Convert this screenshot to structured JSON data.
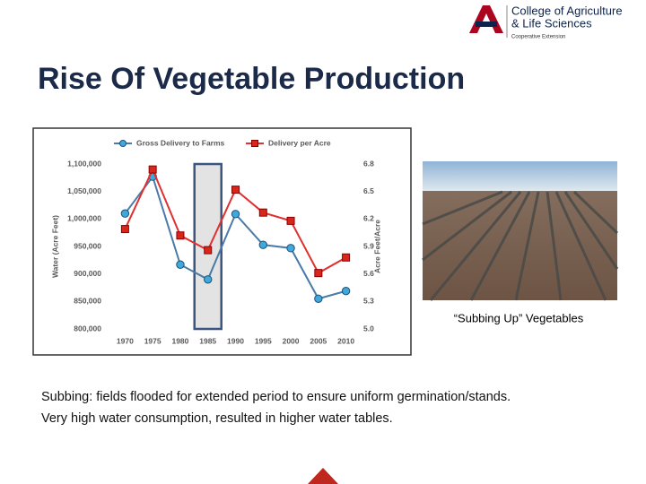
{
  "logo": {
    "line1": "College of Agriculture",
    "line2": "& Life Sciences",
    "line3": "Cooperative Extension"
  },
  "title": "Rise Of Vegetable Production",
  "caption": "“Subbing Up” Vegetables",
  "body": [
    "Subbing: fields flooded for extended period to ensure uniform germination/stands.",
    "Very high water consumption, resulted in higher water tables."
  ],
  "chart_data": {
    "type": "line",
    "categories": [
      "1970",
      "1975",
      "1980",
      "1985",
      "1990",
      "1995",
      "2000",
      "2005",
      "2010"
    ],
    "series": [
      {
        "name": "Gross Delivery to Farms",
        "color": "#4a7aa8",
        "values": [
          1010000,
          1077000,
          917000,
          890000,
          1009000,
          953000,
          947000,
          855000,
          869000
        ]
      },
      {
        "name": "Delivery per Acre",
        "color": "#e03030",
        "axis": "y2",
        "values": [
          6.09,
          6.74,
          6.02,
          5.86,
          6.52,
          6.27,
          6.18,
          5.61,
          5.78
        ]
      }
    ],
    "ylabel": "Water (Acre Feet)",
    "y2label": "Acre Feet/Acre",
    "ylim": [
      800000,
      1100000
    ],
    "yticks": [
      {
        "value": 800000,
        "label": "800,000"
      },
      {
        "value": 850000,
        "label": "850,000"
      },
      {
        "value": 900000,
        "label": "900,000"
      },
      {
        "value": 950000,
        "label": "950,000"
      },
      {
        "value": 1000000,
        "label": "1,000,000"
      },
      {
        "value": 1050000,
        "label": "1,050,000"
      },
      {
        "value": 1100000,
        "label": "1,100,000"
      }
    ],
    "y2lim": [
      5.0,
      6.8
    ],
    "y2ticks": [
      {
        "value": 5.0,
        "label": "5.0"
      },
      5.3,
      5.6,
      5.9,
      6.2,
      6.5,
      6.8
    ],
    "legend": "top"
  }
}
